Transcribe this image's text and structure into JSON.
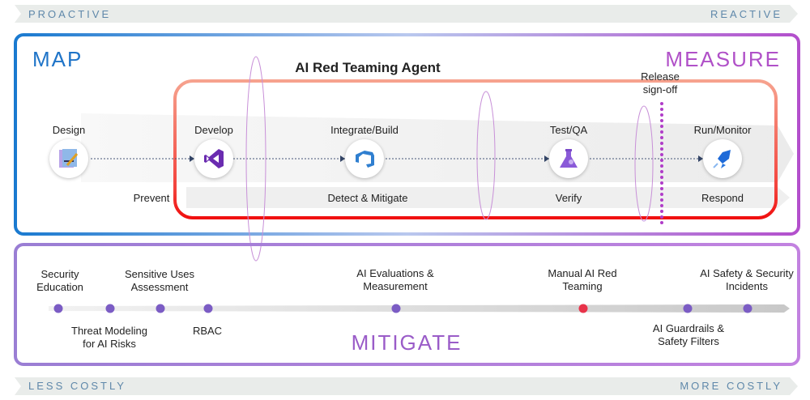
{
  "top_band": {
    "left": "PROACTIVE",
    "right": "REACTIVE"
  },
  "bottom_band": {
    "left": "LESS COSTLY",
    "right": "MORE COSTLY"
  },
  "map": {
    "title": "MAP",
    "measure": "MEASURE",
    "agent_title": "AI Red Teaming Agent",
    "release": "Release sign-off",
    "stages": [
      {
        "label": "Design",
        "icon": "design-doc-icon"
      },
      {
        "label": "Develop",
        "icon": "visual-studio-icon"
      },
      {
        "label": "Integrate/Build",
        "icon": "azure-devops-icon"
      },
      {
        "label": "Test/QA",
        "icon": "flask-icon"
      },
      {
        "label": "Run/Monitor",
        "icon": "rocket-deploy-icon"
      }
    ],
    "phases": [
      "Prevent",
      "Detect & Mitigate",
      "Verify",
      "Respond"
    ]
  },
  "mitigate": {
    "title": "MITIGATE",
    "above": [
      "Security Education",
      "Sensitive Uses Assessment",
      "AI Evaluations & Measurement",
      "Manual AI Red Teaming",
      "AI Safety & Security Incidents"
    ],
    "below": [
      "Threat Modeling for AI Risks",
      "RBAC",
      "AI Guardrails & Safety Filters"
    ]
  },
  "colors": {
    "map": "#1f74c8",
    "measure": "#b050c8",
    "mitigate": "#9a5cc8",
    "red_box": "#f01e1e",
    "dot": "#7b5cc4",
    "dot_highlight": "#e8334a"
  }
}
